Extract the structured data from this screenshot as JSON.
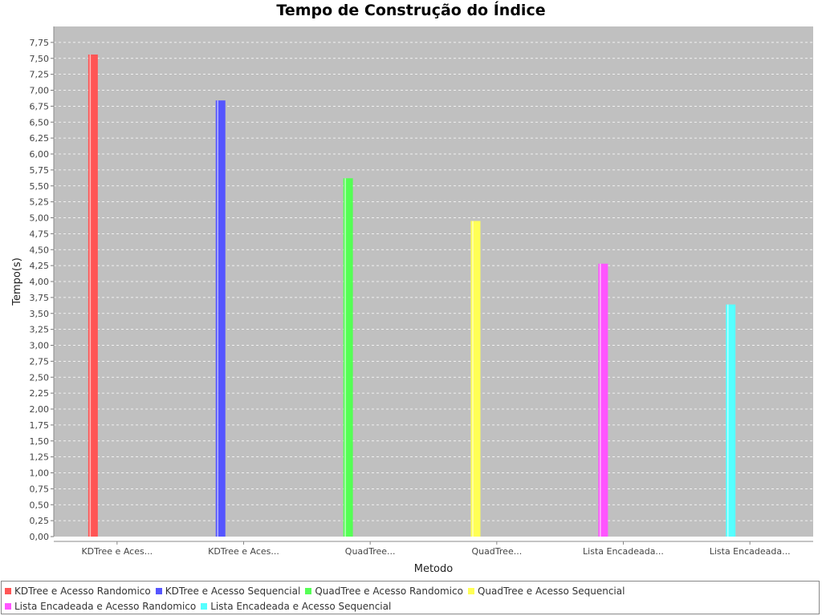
{
  "chart_data": {
    "type": "bar",
    "title": "Tempo de Construção do Índice",
    "xlabel": "Metodo",
    "ylabel": "Tempo(s)",
    "ylim": [
      0,
      7.75
    ],
    "ytick_step": 0.25,
    "grid": true,
    "legend_position": "bottom",
    "categories": [
      "KDTree e Aces...",
      "KDTree e Aces...",
      "QuadTree...",
      "QuadTree...",
      "Lista Encadeada...",
      "Lista Encadeada..."
    ],
    "series": [
      {
        "name": "KDTree e Acesso Randomico",
        "color": "#ff5555",
        "values": [
          7.56,
          null,
          null,
          null,
          null,
          null
        ]
      },
      {
        "name": "KDTree e Acesso Sequencial",
        "color": "#5555ff",
        "values": [
          null,
          6.84,
          null,
          null,
          null,
          null
        ]
      },
      {
        "name": "QuadTree e Acesso Randomico",
        "color": "#55ff55",
        "values": [
          null,
          null,
          5.62,
          null,
          null,
          null
        ]
      },
      {
        "name": "QuadTree e Acesso Sequencial",
        "color": "#ffff55",
        "values": [
          null,
          null,
          null,
          4.95,
          null,
          null
        ]
      },
      {
        "name": "Lista Encadeada e Acesso Randomico",
        "color": "#ff55ff",
        "values": [
          null,
          null,
          null,
          null,
          4.28,
          null
        ]
      },
      {
        "name": "Lista Encadeada e Acesso Sequencial",
        "color": "#55ffff",
        "values": [
          null,
          null,
          null,
          null,
          null,
          3.64
        ]
      }
    ],
    "plot_background": "#c0c0c0"
  }
}
